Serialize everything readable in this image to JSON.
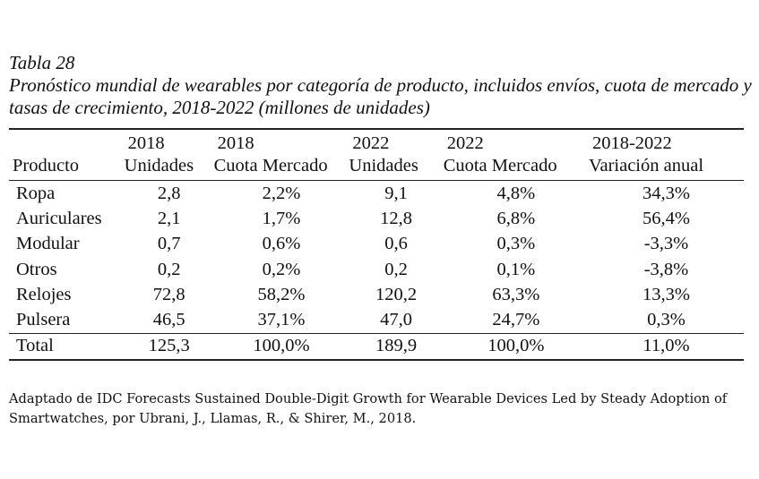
{
  "caption": {
    "label": "Tabla 28",
    "title": "Pronóstico mundial de wearables por categoría de producto, incluidos envíos, cuota de mercado y tasas de crecimiento, 2018-2022 (millones de unidades)"
  },
  "table": {
    "header_top": [
      "",
      "2018",
      "2018",
      "2022",
      "2022",
      "2018-2022"
    ],
    "header_bottom": [
      "Producto",
      "Unidades",
      "Cuota Mercado",
      "Unidades",
      "Cuota Mercado",
      "Variación anual"
    ],
    "rows": [
      [
        "Ropa",
        "2,8",
        "2,2%",
        "9,1",
        "4,8%",
        "34,3%"
      ],
      [
        "Auriculares",
        "2,1",
        "1,7%",
        "12,8",
        "6,8%",
        "56,4%"
      ],
      [
        "Modular",
        "0,7",
        "0,6%",
        "0,6",
        "0,3%",
        "-3,3%"
      ],
      [
        "Otros",
        "0,2",
        "0,2%",
        "0,2",
        "0,1%",
        "-3,8%"
      ],
      [
        "Relojes",
        "72,8",
        "58,2%",
        "120,2",
        "63,3%",
        "13,3%"
      ],
      [
        "Pulsera",
        "46,5",
        "37,1%",
        "47,0",
        "24,7%",
        "0,3%"
      ]
    ],
    "total": [
      "Total",
      "125,3",
      "100,0%",
      "189,9",
      "100,0%",
      "11,0%"
    ]
  },
  "source": "Adaptado de IDC Forecasts Sustained Double-Digit Growth for Wearable Devices Led by Steady Adoption of Smartwatches, por Ubrani, J., Llamas, R., & Shirer, M., 2018."
}
